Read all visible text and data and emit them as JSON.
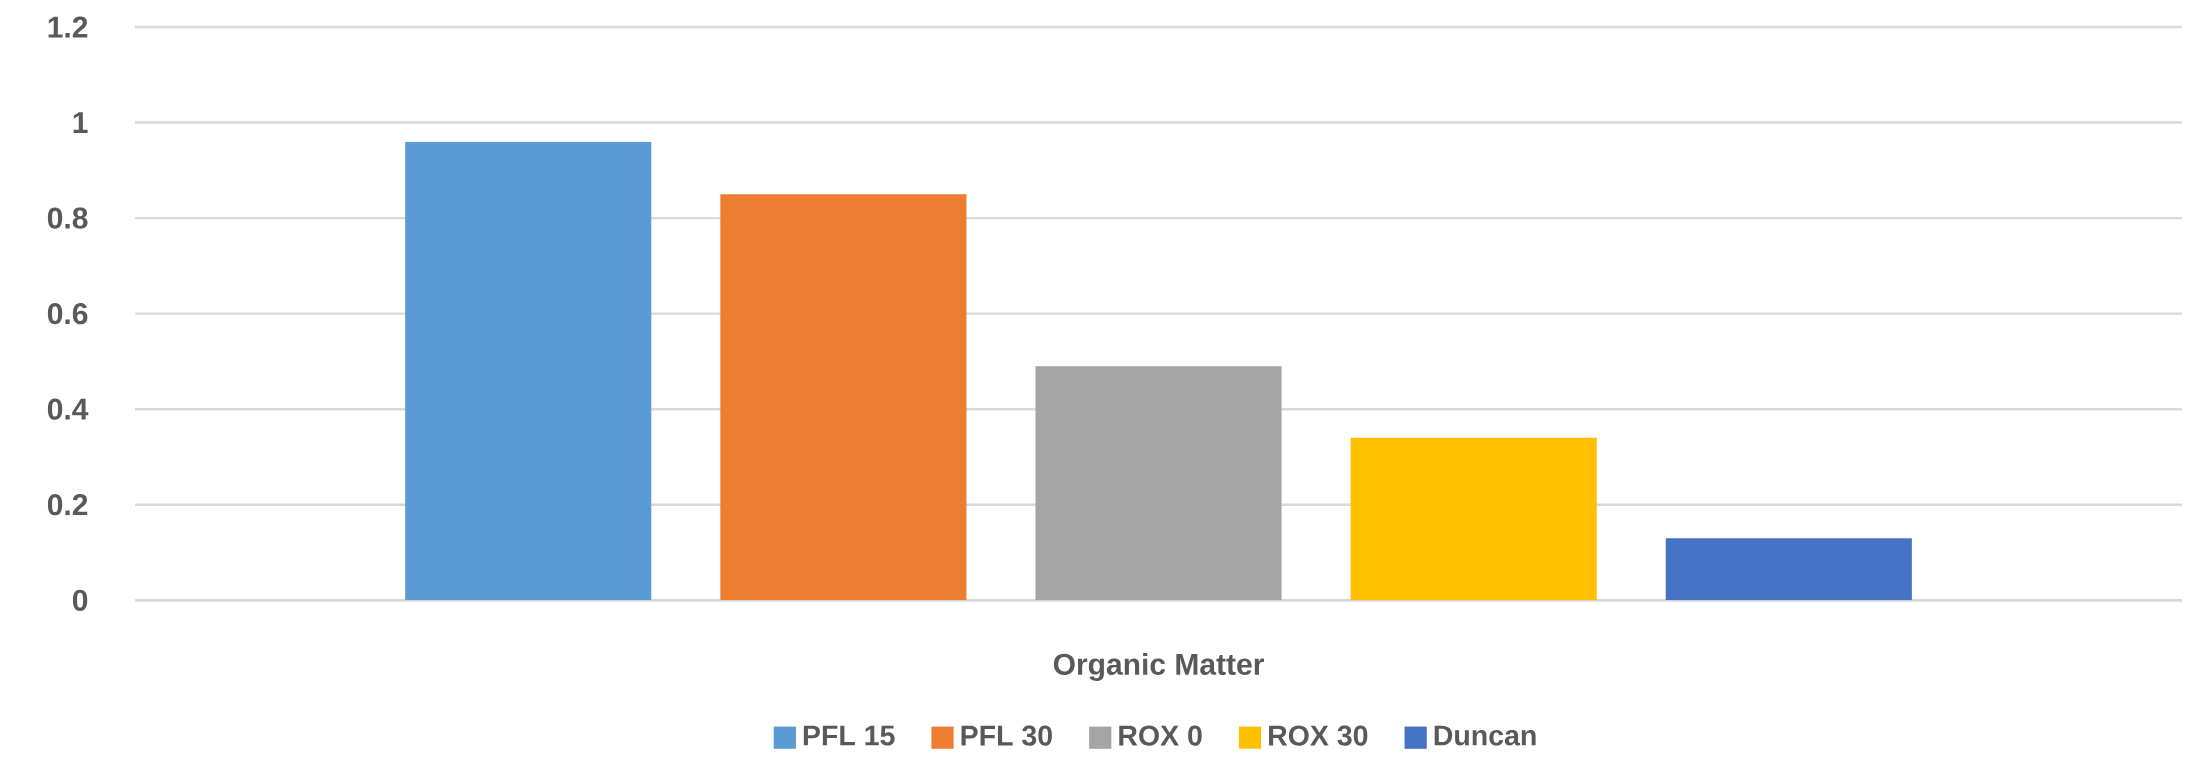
{
  "chart_data": {
    "type": "bar",
    "categories": [
      "Organic Matter"
    ],
    "series": [
      {
        "name": "PFL 15",
        "color": "#5b9bd5",
        "values": [
          0.96
        ]
      },
      {
        "name": "PFL 30",
        "color": "#ed7d31",
        "values": [
          0.85
        ]
      },
      {
        "name": "ROX 0",
        "color": "#a5a5a5",
        "values": [
          0.49
        ]
      },
      {
        "name": "ROX 30",
        "color": "#ffc000",
        "values": [
          0.34
        ]
      },
      {
        "name": "Duncan",
        "color": "#4472c4",
        "values": [
          0.13
        ]
      }
    ],
    "ylim": [
      0,
      1.2
    ],
    "yticks": [
      0,
      0.2,
      0.4,
      0.6,
      0.8,
      1,
      1.2
    ],
    "grid": "y",
    "legend": "bottom"
  }
}
